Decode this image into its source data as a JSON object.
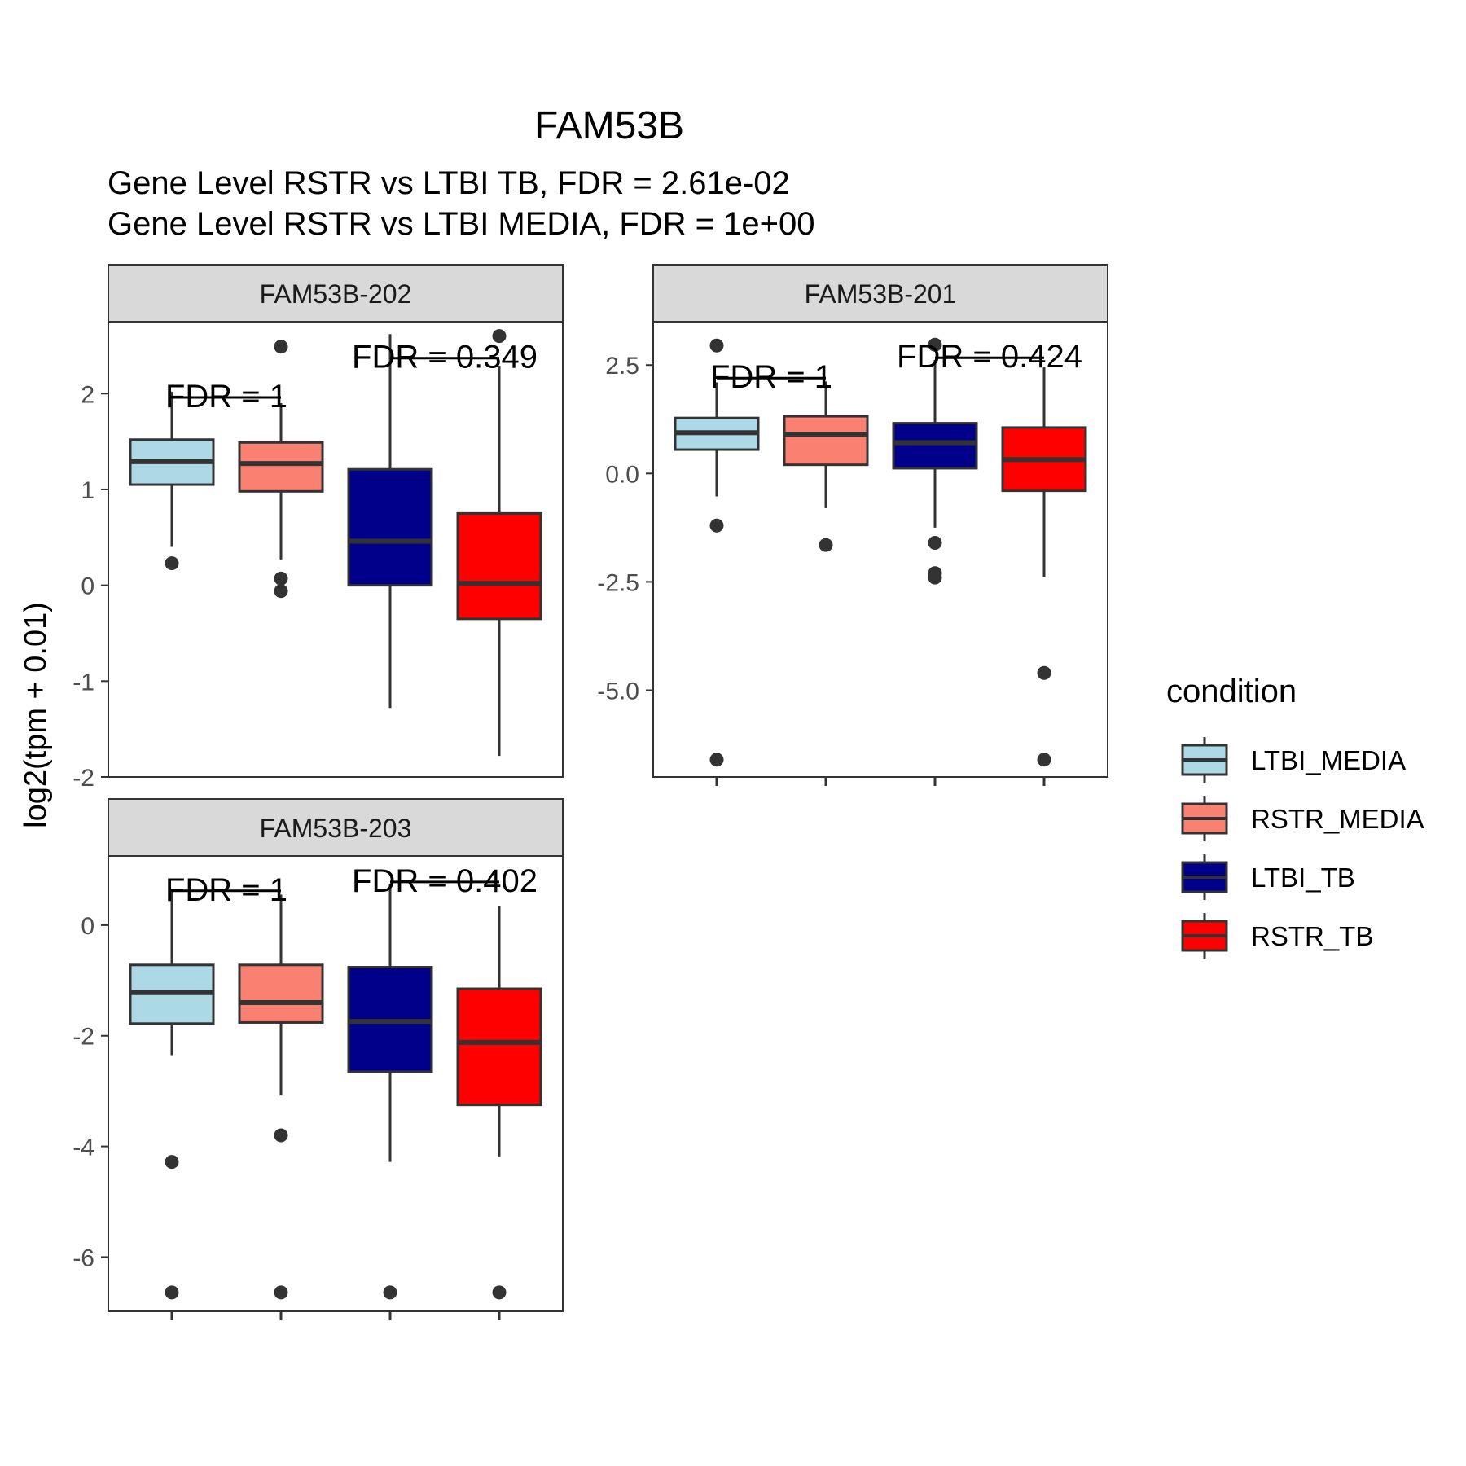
{
  "chart_data": {
    "type": "boxplot",
    "title": "FAM53B",
    "subtitle_lines": [
      "Gene Level RSTR vs LTBI TB, FDR =  2.61e-02",
      "Gene Level RSTR vs LTBI MEDIA, FDR =  1e+00"
    ],
    "ylabel": "log2(tpm + 0.01)",
    "legend": {
      "title": "condition",
      "placement": "right",
      "entries": [
        {
          "name": "LTBI_MEDIA",
          "color": "#ADD8E6"
        },
        {
          "name": "RSTR_MEDIA",
          "color": "#FA8072"
        },
        {
          "name": "LTBI_TB",
          "color": "#00008B"
        },
        {
          "name": "RSTR_TB",
          "color": "#FF0000"
        }
      ]
    },
    "categories": [
      "LTBI_MEDIA",
      "RSTR_MEDIA",
      "LTBI_TB",
      "RSTR_TB"
    ],
    "colors": {
      "LTBI_MEDIA": "#ADD8E6",
      "RSTR_MEDIA": "#FA8072",
      "LTBI_TB": "#00008B",
      "RSTR_TB": "#FF0000",
      "strip_fill": "#D9D9D9",
      "box_outline": "#333333",
      "axis_text": "#4D4D4D"
    },
    "grid": false,
    "panels": [
      {
        "strip": "FAM53B-202",
        "ylim": [
          -2,
          2.75
        ],
        "yticks": [
          -2,
          -1,
          0,
          1,
          2
        ],
        "ytick_labels": [
          "-2",
          "-1",
          "0",
          "1",
          "2"
        ],
        "boxes": [
          {
            "category": "LTBI_MEDIA",
            "whisker_low": 0.4,
            "q1": 1.05,
            "median": 1.29,
            "q3": 1.52,
            "whisker_high": 2.02,
            "outliers": [
              0.23
            ]
          },
          {
            "category": "RSTR_MEDIA",
            "whisker_low": 0.27,
            "q1": 0.98,
            "median": 1.27,
            "q3": 1.49,
            "whisker_high": 1.9,
            "outliers": [
              0.07,
              -0.06,
              2.49
            ]
          },
          {
            "category": "LTBI_TB",
            "whisker_low": -1.28,
            "q1": 0.0,
            "median": 0.46,
            "q3": 1.21,
            "whisker_high": 2.62,
            "outliers": []
          },
          {
            "category": "RSTR_TB",
            "whisker_low": -1.78,
            "q1": -0.35,
            "median": 0.02,
            "q3": 0.75,
            "whisker_high": 2.29,
            "outliers": [
              2.6
            ]
          }
        ],
        "annotations": [
          {
            "text": "FDR =  1",
            "between": [
              "LTBI_MEDIA",
              "RSTR_MEDIA"
            ],
            "y": 1.96
          },
          {
            "text": "FDR =  0.349",
            "between": [
              "LTBI_TB",
              "RSTR_TB"
            ],
            "y": 2.37
          }
        ]
      },
      {
        "strip": "FAM53B-201",
        "ylim": [
          -7.0,
          3.5
        ],
        "yticks": [
          -5.0,
          -2.5,
          0.0,
          2.5
        ],
        "ytick_labels": [
          "-5.0",
          "-2.5",
          "0.0",
          "2.5"
        ],
        "boxes": [
          {
            "category": "LTBI_MEDIA",
            "whisker_low": -0.53,
            "q1": 0.55,
            "median": 0.94,
            "q3": 1.28,
            "whisker_high": 2.1,
            "outliers": [
              -1.2,
              -6.6,
              2.95
            ]
          },
          {
            "category": "RSTR_MEDIA",
            "whisker_low": -0.8,
            "q1": 0.2,
            "median": 0.9,
            "q3": 1.32,
            "whisker_high": 2.12,
            "outliers": [
              -1.65
            ]
          },
          {
            "category": "LTBI_TB",
            "whisker_low": -1.25,
            "q1": 0.12,
            "median": 0.71,
            "q3": 1.16,
            "whisker_high": 2.62,
            "outliers": [
              -1.6,
              -2.3,
              -2.4,
              2.97
            ]
          },
          {
            "category": "RSTR_TB",
            "whisker_low": -2.38,
            "q1": -0.4,
            "median": 0.32,
            "q3": 1.06,
            "whisker_high": 2.45,
            "outliers": [
              -4.6,
              -6.6
            ]
          }
        ],
        "annotations": [
          {
            "text": "FDR =  1",
            "between": [
              "LTBI_MEDIA",
              "RSTR_MEDIA"
            ],
            "y": 2.2
          },
          {
            "text": "FDR =  0.424",
            "between": [
              "LTBI_TB",
              "RSTR_TB"
            ],
            "y": 2.67
          }
        ]
      },
      {
        "strip": "FAM53B-203",
        "ylim": [
          -6.98,
          1.25
        ],
        "yticks": [
          -6,
          -4,
          -2,
          0
        ],
        "ytick_labels": [
          "-6",
          "-4",
          "-2",
          "0"
        ],
        "boxes": [
          {
            "category": "LTBI_MEDIA",
            "whisker_low": -2.35,
            "q1": -1.78,
            "median": -1.22,
            "q3": -0.72,
            "whisker_high": 0.65,
            "outliers": [
              -4.28,
              -6.64
            ]
          },
          {
            "category": "RSTR_MEDIA",
            "whisker_low": -3.08,
            "q1": -1.76,
            "median": -1.4,
            "q3": -0.72,
            "whisker_high": 0.55,
            "outliers": [
              -3.8,
              -6.64
            ]
          },
          {
            "category": "LTBI_TB",
            "whisker_low": -4.28,
            "q1": -2.65,
            "median": -1.74,
            "q3": -0.76,
            "whisker_high": 0.75,
            "outliers": [
              -6.64
            ]
          },
          {
            "category": "RSTR_TB",
            "whisker_low": -4.18,
            "q1": -3.25,
            "median": -2.12,
            "q3": -1.15,
            "whisker_high": 0.35,
            "outliers": [
              -6.64
            ]
          }
        ],
        "annotations": [
          {
            "text": "FDR =  1",
            "between": [
              "LTBI_MEDIA",
              "RSTR_MEDIA"
            ],
            "y": 0.62
          },
          {
            "text": "FDR =  0.402",
            "between": [
              "LTBI_TB",
              "RSTR_TB"
            ],
            "y": 0.78
          }
        ]
      }
    ]
  }
}
